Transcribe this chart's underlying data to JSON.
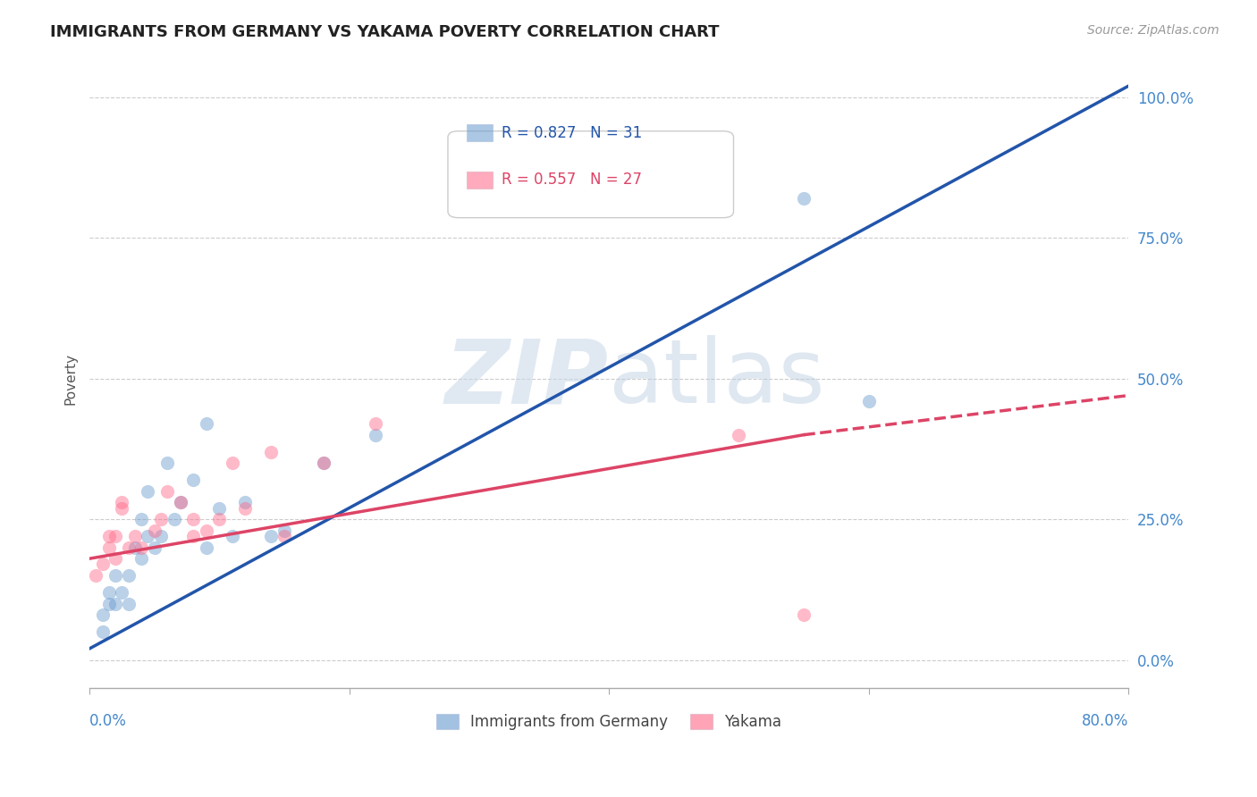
{
  "title": "IMMIGRANTS FROM GERMANY VS YAKAMA POVERTY CORRELATION CHART",
  "source": "Source: ZipAtlas.com",
  "ylabel": "Poverty",
  "ytick_labels": [
    "0.0%",
    "25.0%",
    "50.0%",
    "75.0%",
    "100.0%"
  ],
  "ytick_values": [
    0.0,
    0.25,
    0.5,
    0.75,
    1.0
  ],
  "xlim": [
    0.0,
    0.8
  ],
  "ylim": [
    -0.05,
    1.05
  ],
  "legend_entry1": {
    "R": "0.827",
    "N": "31",
    "color": "#6699CC"
  },
  "legend_entry2": {
    "R": "0.557",
    "N": "27",
    "color": "#FF6688"
  },
  "legend_label1": "Immigrants from Germany",
  "legend_label2": "Yakama",
  "watermark_zip": "ZIP",
  "watermark_atlas": "atlas",
  "background_color": "#ffffff",
  "grid_color": "#cccccc",
  "blue_scatter_x": [
    0.01,
    0.01,
    0.015,
    0.015,
    0.02,
    0.02,
    0.025,
    0.03,
    0.03,
    0.035,
    0.04,
    0.04,
    0.045,
    0.045,
    0.05,
    0.055,
    0.06,
    0.065,
    0.07,
    0.08,
    0.09,
    0.09,
    0.1,
    0.11,
    0.12,
    0.14,
    0.15,
    0.18,
    0.22,
    0.55,
    0.6
  ],
  "blue_scatter_y": [
    0.05,
    0.08,
    0.1,
    0.12,
    0.1,
    0.15,
    0.12,
    0.1,
    0.15,
    0.2,
    0.18,
    0.25,
    0.22,
    0.3,
    0.2,
    0.22,
    0.35,
    0.25,
    0.28,
    0.32,
    0.2,
    0.42,
    0.27,
    0.22,
    0.28,
    0.22,
    0.23,
    0.35,
    0.4,
    0.82,
    0.46
  ],
  "pink_scatter_x": [
    0.005,
    0.01,
    0.015,
    0.015,
    0.02,
    0.02,
    0.025,
    0.025,
    0.03,
    0.035,
    0.04,
    0.05,
    0.055,
    0.06,
    0.07,
    0.08,
    0.08,
    0.09,
    0.1,
    0.11,
    0.12,
    0.14,
    0.15,
    0.18,
    0.22,
    0.5,
    0.55
  ],
  "pink_scatter_y": [
    0.15,
    0.17,
    0.2,
    0.22,
    0.18,
    0.22,
    0.27,
    0.28,
    0.2,
    0.22,
    0.2,
    0.23,
    0.25,
    0.3,
    0.28,
    0.22,
    0.25,
    0.23,
    0.25,
    0.35,
    0.27,
    0.37,
    0.22,
    0.35,
    0.42,
    0.4,
    0.08
  ],
  "blue_line_x": [
    0.0,
    0.8
  ],
  "blue_line_y": [
    0.02,
    1.02
  ],
  "pink_solid_line_x": [
    0.0,
    0.55
  ],
  "pink_solid_line_y": [
    0.18,
    0.4
  ],
  "pink_dashed_line_x": [
    0.55,
    0.8
  ],
  "pink_dashed_line_y": [
    0.4,
    0.47
  ],
  "dot_size": 120,
  "dot_alpha": 0.45,
  "line_width": 2.5,
  "blue_line_color": "#2255AA",
  "pink_line_color": "#DD4466"
}
